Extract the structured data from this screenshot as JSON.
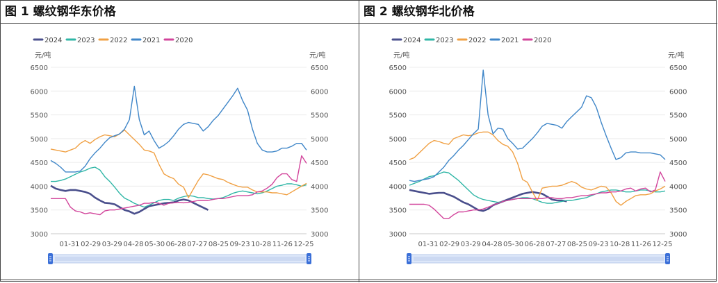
{
  "chart_data": [
    {
      "type": "line",
      "title": "图 1 螺纹钢华东价格",
      "yunit_left": "元/吨",
      "yunit_right": "元/吨",
      "ylim": [
        3000,
        6500
      ],
      "yticks": [
        3000,
        3500,
        4000,
        4500,
        5000,
        5500,
        6000,
        6500
      ],
      "xticks": [
        "01-31",
        "02-29",
        "03-29",
        "04-28",
        "05-30",
        "06-28",
        "07-27",
        "08-25",
        "09-23",
        "10-28",
        "11-26",
        "12-25"
      ],
      "grid": true,
      "legend_position": "top-left",
      "series": [
        {
          "name": "2024",
          "color": "#4a4f8c",
          "values": [
            4010,
            3950,
            3920,
            3900,
            3920,
            3920,
            3900,
            3880,
            3840,
            3760,
            3700,
            3650,
            3640,
            3620,
            3560,
            3500,
            3470,
            3420,
            3460,
            3520,
            3580,
            3600,
            3620,
            3640,
            3650,
            3660,
            3700,
            3720,
            3700,
            3650,
            3600,
            3550,
            3500
          ]
        },
        {
          "name": "2023",
          "color": "#2fb6a6",
          "values": [
            4100,
            4100,
            4120,
            4150,
            4200,
            4250,
            4300,
            4330,
            4380,
            4400,
            4340,
            4200,
            4100,
            3980,
            3850,
            3750,
            3700,
            3640,
            3600,
            3560,
            3600,
            3650,
            3700,
            3720,
            3720,
            3700,
            3750,
            3780,
            3800,
            3790,
            3760,
            3760,
            3740,
            3730,
            3740,
            3760,
            3800,
            3850,
            3880,
            3900,
            3880,
            3860,
            3840,
            3860,
            3900,
            3950,
            4000,
            4020,
            4050,
            4050,
            4030,
            4000,
            4030
          ]
        },
        {
          "name": "2022",
          "color": "#f0a043",
          "values": [
            4780,
            4760,
            4740,
            4720,
            4760,
            4800,
            4900,
            4960,
            4900,
            4980,
            5040,
            5080,
            5060,
            5040,
            5100,
            5180,
            5080,
            4980,
            4880,
            4760,
            4740,
            4700,
            4460,
            4260,
            4200,
            4160,
            4040,
            3980,
            3760,
            3940,
            4120,
            4260,
            4240,
            4200,
            4160,
            4140,
            4080,
            4040,
            4000,
            3980,
            3980,
            3920,
            3880,
            3880,
            3880,
            3860,
            3860,
            3840,
            3820,
            3880,
            3940,
            4000,
            4060
          ]
        },
        {
          "name": "2021",
          "color": "#3f86c8",
          "values": [
            4540,
            4480,
            4400,
            4300,
            4300,
            4300,
            4320,
            4420,
            4580,
            4700,
            4800,
            4920,
            5020,
            5060,
            5100,
            5200,
            5400,
            6100,
            5400,
            5080,
            5160,
            4960,
            4800,
            4860,
            4940,
            5060,
            5200,
            5300,
            5340,
            5320,
            5300,
            5160,
            5250,
            5380,
            5480,
            5620,
            5760,
            5900,
            6060,
            5800,
            5600,
            5200,
            4900,
            4760,
            4720,
            4720,
            4740,
            4800,
            4800,
            4840,
            4900,
            4900,
            4760
          ]
        },
        {
          "name": "2020",
          "color": "#d2449b",
          "values": [
            3740,
            3740,
            3740,
            3740,
            3560,
            3480,
            3460,
            3420,
            3440,
            3420,
            3400,
            3480,
            3500,
            3500,
            3520,
            3540,
            3560,
            3580,
            3600,
            3640,
            3640,
            3660,
            3640,
            3600,
            3640,
            3650,
            3660,
            3650,
            3660,
            3680,
            3700,
            3700,
            3700,
            3720,
            3740,
            3740,
            3760,
            3780,
            3800,
            3800,
            3800,
            3820,
            3880,
            3900,
            3960,
            4040,
            4180,
            4260,
            4260,
            4140,
            4100,
            4640,
            4480
          ]
        }
      ]
    },
    {
      "type": "line",
      "title": "图 2 螺纹钢华北价格",
      "yunit_left": "元/吨",
      "yunit_right": "元/吨",
      "ylim": [
        3000,
        6500
      ],
      "yticks": [
        3000,
        3500,
        4000,
        4500,
        5000,
        5500,
        6000,
        6500
      ],
      "xticks": [
        "01-31",
        "02-29",
        "03-29",
        "04-28",
        "05-30",
        "06-28",
        "07-27",
        "08-25",
        "09-23",
        "10-28",
        "11-26",
        "12-25"
      ],
      "grid": true,
      "legend_position": "top-left",
      "series": [
        {
          "name": "2024",
          "color": "#4a4f8c",
          "values": [
            3920,
            3900,
            3880,
            3860,
            3840,
            3850,
            3860,
            3860,
            3820,
            3780,
            3720,
            3660,
            3620,
            3560,
            3500,
            3480,
            3520,
            3600,
            3640,
            3680,
            3720,
            3760,
            3800,
            3840,
            3860,
            3880,
            3860,
            3840,
            3780,
            3720,
            3700,
            3700,
            3680
          ]
        },
        {
          "name": "2023",
          "color": "#2fb6a6",
          "values": [
            4020,
            4060,
            4100,
            4150,
            4200,
            4220,
            4260,
            4300,
            4280,
            4200,
            4120,
            4020,
            3920,
            3820,
            3760,
            3720,
            3700,
            3680,
            3660,
            3680,
            3700,
            3720,
            3740,
            3760,
            3760,
            3740,
            3700,
            3660,
            3640,
            3640,
            3660,
            3680,
            3700,
            3700,
            3720,
            3740,
            3760,
            3800,
            3840,
            3880,
            3900,
            3920,
            3920,
            3900,
            3880,
            3880,
            3900,
            3920,
            3920,
            3900,
            3880,
            3880,
            3900
          ]
        },
        {
          "name": "2022",
          "color": "#f0a043",
          "values": [
            4560,
            4600,
            4700,
            4800,
            4900,
            4960,
            4940,
            4900,
            4880,
            5000,
            5040,
            5080,
            5060,
            5080,
            5120,
            5140,
            5140,
            5080,
            4960,
            4880,
            4840,
            4720,
            4480,
            4140,
            4080,
            3880,
            3700,
            3960,
            3980,
            4000,
            4000,
            4020,
            4060,
            4100,
            4060,
            3980,
            3940,
            3920,
            3960,
            4000,
            3980,
            3860,
            3680,
            3600,
            3680,
            3740,
            3800,
            3820,
            3820,
            3840,
            3900,
            3940,
            4000
          ]
        },
        {
          "name": "2021",
          "color": "#3f86c8",
          "values": [
            4120,
            4100,
            4120,
            4140,
            4160,
            4200,
            4300,
            4400,
            4540,
            4640,
            4760,
            4860,
            4980,
            5100,
            5200,
            6440,
            5500,
            5100,
            5220,
            5200,
            5000,
            4900,
            4780,
            4800,
            4900,
            5000,
            5120,
            5260,
            5320,
            5300,
            5280,
            5220,
            5360,
            5460,
            5560,
            5660,
            5900,
            5860,
            5660,
            5340,
            5060,
            4800,
            4560,
            4600,
            4700,
            4720,
            4720,
            4700,
            4700,
            4700,
            4680,
            4660,
            4560
          ]
        },
        {
          "name": "2020",
          "color": "#d2449b",
          "values": [
            3620,
            3620,
            3620,
            3620,
            3600,
            3520,
            3420,
            3320,
            3320,
            3400,
            3460,
            3460,
            3480,
            3500,
            3500,
            3520,
            3560,
            3600,
            3640,
            3680,
            3700,
            3720,
            3740,
            3740,
            3740,
            3740,
            3740,
            3740,
            3760,
            3760,
            3740,
            3740,
            3760,
            3760,
            3780,
            3800,
            3800,
            3820,
            3840,
            3860,
            3860,
            3880,
            3880,
            3900,
            3940,
            3960,
            3900,
            3940,
            3960,
            3880,
            3920,
            4300,
            4100
          ]
        }
      ]
    }
  ]
}
